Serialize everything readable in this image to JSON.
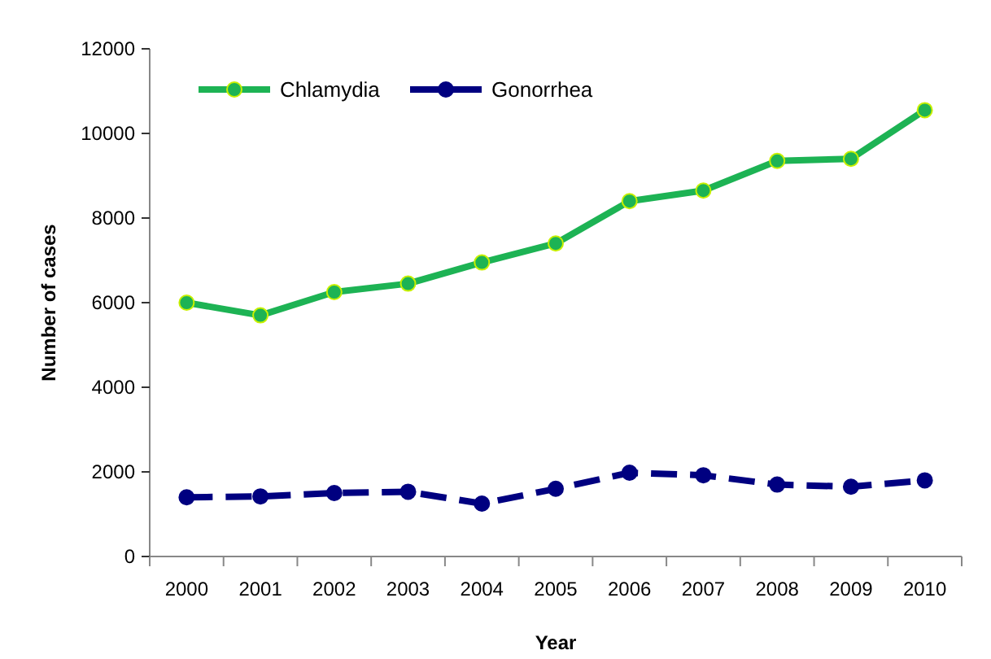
{
  "chart_data": {
    "type": "line",
    "xlabel": "Year",
    "ylabel": "Number of cases",
    "categories": [
      "2000",
      "2001",
      "2002",
      "2003",
      "2004",
      "2005",
      "2006",
      "2007",
      "2008",
      "2009",
      "2010"
    ],
    "series": [
      {
        "name": "Chlamydia",
        "color": "#1db354",
        "values": [
          6000,
          5700,
          6250,
          6450,
          6950,
          7400,
          8400,
          8650,
          9350,
          9400,
          10550
        ],
        "line_style": "solid"
      },
      {
        "name": "Gonorrhea",
        "color": "#000080",
        "values": [
          1400,
          1420,
          1500,
          1530,
          1250,
          1600,
          1980,
          1920,
          1700,
          1650,
          1800
        ],
        "line_style": "dashed"
      }
    ],
    "ylim": [
      0,
      12000
    ],
    "yticks": [
      0,
      2000,
      4000,
      6000,
      8000,
      10000,
      12000
    ],
    "grid": false,
    "legend": "top left",
    "marker": "circle"
  }
}
